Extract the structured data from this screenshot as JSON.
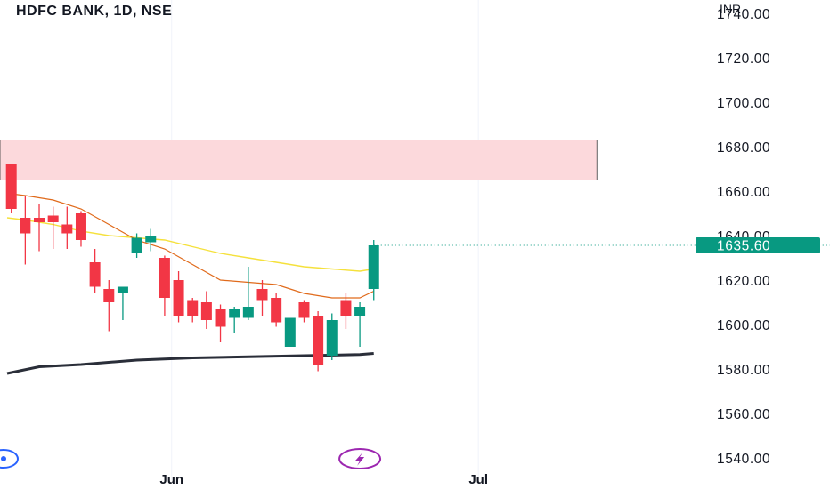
{
  "header": {
    "title": "HDFC BANK, 1D, NSE",
    "currency": "INR"
  },
  "colors": {
    "up": "#089981",
    "down": "#f23645",
    "ema_fast": "#e06a1b",
    "ema_slow": "#f5e13c",
    "long_ma": "#2a2e39",
    "zone_fill": "#fcd9dc",
    "price_label_bg": "#089981",
    "event_icon": "#9c27b0",
    "left_icon": "#2962ff"
  },
  "chart_data": {
    "type": "candlestick",
    "symbol": "HDFC BANK",
    "interval": "1D",
    "exchange": "NSE",
    "y_unit": "INR",
    "ylim": [
      1534,
      1746
    ],
    "yticks": [
      1740,
      1720,
      1700,
      1680,
      1660,
      1640,
      1620,
      1600,
      1580,
      1560,
      1540
    ],
    "ytick_labels": [
      "1740.00",
      "1720.00",
      "1700.00",
      "1680.00",
      "1660.00",
      "1640.00",
      "1620.00",
      "1600.00",
      "1580.00",
      "1560.00",
      "1540.00"
    ],
    "x_axis_labels": [
      {
        "label": "Jun",
        "bar_index": 11.5
      },
      {
        "label": "Jul",
        "bar_index": 33.5
      }
    ],
    "bar_index_range": [
      -0.3,
      50.8
    ],
    "last_price": 1635.6,
    "last_price_label": "1635.60",
    "candles": [
      {
        "o": 1672,
        "h": 1672,
        "l": 1650,
        "c": 1652
      },
      {
        "o": 1648,
        "h": 1658,
        "l": 1627,
        "c": 1641
      },
      {
        "o": 1648,
        "h": 1654,
        "l": 1633,
        "c": 1646
      },
      {
        "o": 1649,
        "h": 1653,
        "l": 1634,
        "c": 1646
      },
      {
        "o": 1645,
        "h": 1653,
        "l": 1634,
        "c": 1641
      },
      {
        "o": 1650,
        "h": 1651,
        "l": 1635,
        "c": 1638
      },
      {
        "o": 1628,
        "h": 1634,
        "l": 1614,
        "c": 1617
      },
      {
        "o": 1616,
        "h": 1620,
        "l": 1597,
        "c": 1610
      },
      {
        "o": 1614,
        "h": 1616,
        "l": 1602,
        "c": 1617
      },
      {
        "o": 1632,
        "h": 1641,
        "l": 1630,
        "c": 1639
      },
      {
        "o": 1637,
        "h": 1643,
        "l": 1633,
        "c": 1640
      },
      {
        "o": 1630,
        "h": 1631,
        "l": 1604,
        "c": 1612
      },
      {
        "o": 1620,
        "h": 1624,
        "l": 1601,
        "c": 1604
      },
      {
        "o": 1611,
        "h": 1612,
        "l": 1601,
        "c": 1604
      },
      {
        "o": 1610,
        "h": 1615,
        "l": 1598,
        "c": 1602
      },
      {
        "o": 1607,
        "h": 1609,
        "l": 1592,
        "c": 1599
      },
      {
        "o": 1603,
        "h": 1608,
        "l": 1596,
        "c": 1607
      },
      {
        "o": 1603,
        "h": 1626,
        "l": 1602,
        "c": 1608
      },
      {
        "o": 1616,
        "h": 1620,
        "l": 1604,
        "c": 1611
      },
      {
        "o": 1612,
        "h": 1614,
        "l": 1599,
        "c": 1601
      },
      {
        "o": 1590,
        "h": 1603,
        "l": 1590,
        "c": 1603
      },
      {
        "o": 1610,
        "h": 1611,
        "l": 1601,
        "c": 1603
      },
      {
        "o": 1604,
        "h": 1606,
        "l": 1579,
        "c": 1582
      },
      {
        "o": 1586,
        "h": 1605,
        "l": 1584,
        "c": 1602
      },
      {
        "o": 1611,
        "h": 1614,
        "l": 1598,
        "c": 1604
      },
      {
        "o": 1604,
        "h": 1610,
        "l": 1590,
        "c": 1608
      },
      {
        "o": 1616,
        "h": 1638,
        "l": 1611,
        "c": 1635.6
      }
    ],
    "ema_fast": [
      [
        -0.3,
        1659
      ],
      [
        1,
        1658
      ],
      [
        3,
        1656
      ],
      [
        5,
        1652
      ],
      [
        7,
        1645
      ],
      [
        9,
        1638
      ],
      [
        11,
        1634
      ],
      [
        13,
        1627
      ],
      [
        15,
        1620
      ],
      [
        17,
        1619
      ],
      [
        19,
        1618
      ],
      [
        21,
        1614
      ],
      [
        23,
        1612
      ],
      [
        25,
        1612
      ],
      [
        26,
        1615
      ]
    ],
    "ema_slow": [
      [
        -0.3,
        1648
      ],
      [
        1,
        1647
      ],
      [
        3,
        1645
      ],
      [
        5,
        1642
      ],
      [
        7,
        1640
      ],
      [
        9,
        1639
      ],
      [
        11,
        1638
      ],
      [
        13,
        1635
      ],
      [
        15,
        1632
      ],
      [
        17,
        1630
      ],
      [
        19,
        1628
      ],
      [
        21,
        1626
      ],
      [
        23,
        1625
      ],
      [
        25,
        1624
      ],
      [
        26,
        1625
      ]
    ],
    "long_ma": [
      [
        -0.3,
        1578
      ],
      [
        2,
        1581
      ],
      [
        5,
        1582
      ],
      [
        9,
        1584
      ],
      [
        13,
        1585
      ],
      [
        17,
        1585.5
      ],
      [
        21,
        1586
      ],
      [
        25,
        1586.5
      ],
      [
        26,
        1587
      ]
    ],
    "zone": {
      "from_bar": -0.3,
      "to_bar": 42,
      "low": 1665,
      "high": 1683
    },
    "markers": [
      {
        "kind": "left-circle-icon",
        "bar_index": 0
      },
      {
        "kind": "lightning-event-icon",
        "bar_index": 25
      }
    ]
  }
}
